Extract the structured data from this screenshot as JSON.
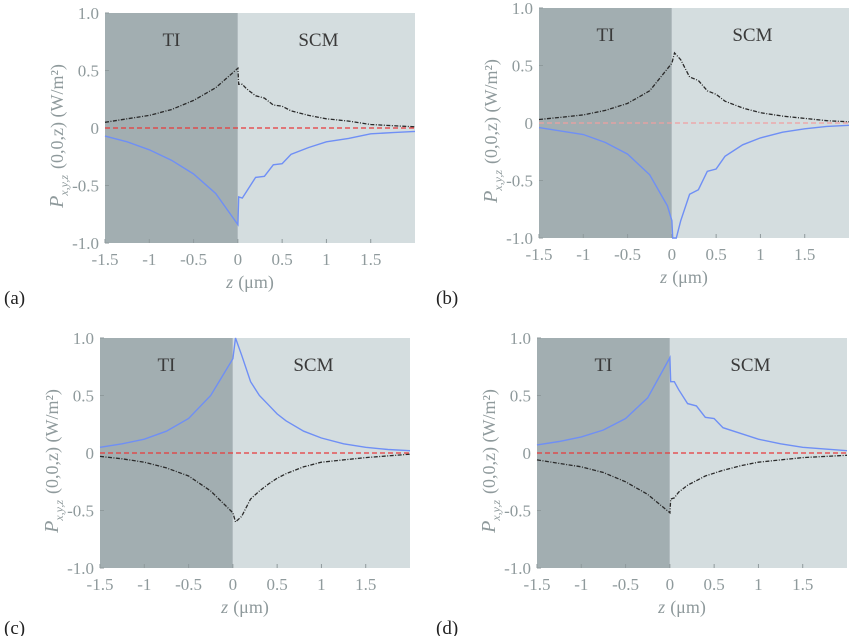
{
  "chart_data": [
    {
      "panel_label": "(a)",
      "type": "line",
      "xlabel_var": "z",
      "xlabel_unit": "(μm)",
      "ylabel_var": "P",
      "ylabel_sub": "x,y,z",
      "ylabel_rest": "(0,0,z) (W/m²)",
      "xlim": [
        -1.5,
        2.0
      ],
      "ylim": [
        -1.0,
        1.0
      ],
      "xticks": [
        "-1.5",
        "-1",
        "-0.5",
        "0",
        "0.5",
        "1",
        "1.5"
      ],
      "yticks": [
        "1.0",
        "0.5",
        "0",
        "-0.5",
        "-1.0"
      ],
      "regions": [
        {
          "label": "TI",
          "from": -1.5,
          "to": 0,
          "color": "#a2aeb1"
        },
        {
          "label": "SCM",
          "from": 0,
          "to": 2.0,
          "color": "#d4dddf"
        }
      ],
      "series": [
        {
          "style": "dashdot",
          "color": "#2a2a2a",
          "x": [
            -1.5,
            -1.25,
            -1,
            -0.75,
            -0.5,
            -0.25,
            0,
            0.01,
            0.05,
            0.1,
            0.2,
            0.3,
            0.4,
            0.5,
            0.6,
            0.8,
            1.0,
            1.25,
            1.5,
            1.75,
            2.0
          ],
          "y": [
            0.05,
            0.08,
            0.11,
            0.16,
            0.24,
            0.35,
            0.52,
            0.38,
            0.38,
            0.34,
            0.28,
            0.26,
            0.2,
            0.19,
            0.15,
            0.11,
            0.08,
            0.06,
            0.03,
            0.02,
            0.01
          ]
        },
        {
          "style": "solid",
          "color": "#6f8ff5",
          "x": [
            -1.5,
            -1.25,
            -1,
            -0.75,
            -0.5,
            -0.25,
            0,
            0.01,
            0.05,
            0.1,
            0.2,
            0.3,
            0.4,
            0.5,
            0.6,
            0.8,
            1.0,
            1.25,
            1.5,
            1.75,
            2.0
          ],
          "y": [
            -0.07,
            -0.12,
            -0.19,
            -0.28,
            -0.4,
            -0.57,
            -0.84,
            -0.6,
            -0.61,
            -0.55,
            -0.43,
            -0.42,
            -0.32,
            -0.31,
            -0.23,
            -0.17,
            -0.12,
            -0.09,
            -0.05,
            -0.04,
            -0.03
          ]
        },
        {
          "style": "dashed",
          "color": "#e83a3a",
          "x": [
            -1.5,
            2.0
          ],
          "y": [
            0,
            0
          ]
        }
      ]
    },
    {
      "panel_label": "(b)",
      "type": "line",
      "xlabel_var": "z",
      "xlabel_unit": "(μm)",
      "ylabel_var": "P",
      "ylabel_sub": "x,y,z",
      "ylabel_rest": "(0,0,z) (W/m²)",
      "xlim": [
        -1.5,
        2.0
      ],
      "ylim": [
        -1.0,
        1.0
      ],
      "xticks": [
        "-1.5",
        "-1",
        "-0.5",
        "0",
        "0.5",
        "1",
        "1.5"
      ],
      "yticks": [
        "1.0",
        "0.5",
        "0",
        "-0.5",
        "-1.0"
      ],
      "regions": [
        {
          "label": "TI",
          "from": -1.5,
          "to": 0,
          "color": "#a2aeb1"
        },
        {
          "label": "SCM",
          "from": 0,
          "to": 2.0,
          "color": "#d4dddf"
        }
      ],
      "series": [
        {
          "style": "dashdot",
          "color": "#2a2a2a",
          "x": [
            -1.5,
            -1.25,
            -1,
            -0.75,
            -0.5,
            -0.25,
            0,
            0.03,
            0.1,
            0.2,
            0.3,
            0.4,
            0.5,
            0.6,
            0.8,
            1.0,
            1.25,
            1.5,
            1.75,
            2.0
          ],
          "y": [
            0.03,
            0.05,
            0.07,
            0.11,
            0.17,
            0.28,
            0.52,
            0.61,
            0.55,
            0.4,
            0.37,
            0.28,
            0.25,
            0.19,
            0.13,
            0.09,
            0.06,
            0.04,
            0.02,
            0.01
          ]
        },
        {
          "style": "solid",
          "color": "#6f8ff5",
          "x": [
            -1.5,
            -1.25,
            -1,
            -0.75,
            -0.5,
            -0.25,
            -0.05,
            0,
            0.01,
            0.05,
            0.1,
            0.2,
            0.3,
            0.4,
            0.5,
            0.6,
            0.8,
            1.0,
            1.25,
            1.5,
            1.75,
            2.0
          ],
          "y": [
            -0.04,
            -0.07,
            -0.1,
            -0.17,
            -0.27,
            -0.45,
            -0.72,
            -0.85,
            -1.0,
            -1.0,
            -0.85,
            -0.62,
            -0.58,
            -0.42,
            -0.4,
            -0.29,
            -0.19,
            -0.13,
            -0.08,
            -0.05,
            -0.03,
            -0.02
          ]
        },
        {
          "style": "dashed",
          "color": "#f0a0a0",
          "x": [
            -1.5,
            2.0
          ],
          "y": [
            0,
            0
          ]
        }
      ]
    },
    {
      "panel_label": "(c)",
      "type": "line",
      "xlabel_var": "z",
      "xlabel_unit": "(μm)",
      "ylabel_var": "P",
      "ylabel_sub": "x,y,z",
      "ylabel_rest": "(0,0,z) (W/m²)",
      "xlim": [
        -1.5,
        2.0
      ],
      "ylim": [
        -1.0,
        1.0
      ],
      "xticks": [
        "-1.5",
        "-1",
        "-0.5",
        "0",
        "0.5",
        "1",
        "1.5"
      ],
      "yticks": [
        "1.0",
        "0.5",
        "0",
        "-0.5",
        "-1.0"
      ],
      "regions": [
        {
          "label": "TI",
          "from": -1.5,
          "to": 0,
          "color": "#a2aeb1"
        },
        {
          "label": "SCM",
          "from": 0,
          "to": 2.0,
          "color": "#d4dddf"
        }
      ],
      "series": [
        {
          "style": "solid",
          "color": "#6f8ff5",
          "x": [
            -1.5,
            -1.25,
            -1,
            -0.75,
            -0.5,
            -0.25,
            0,
            0.03,
            0.1,
            0.2,
            0.3,
            0.4,
            0.5,
            0.6,
            0.8,
            1.0,
            1.25,
            1.5,
            1.75,
            2.0
          ],
          "y": [
            0.05,
            0.08,
            0.12,
            0.19,
            0.3,
            0.5,
            0.82,
            1.0,
            0.85,
            0.62,
            0.5,
            0.42,
            0.34,
            0.28,
            0.19,
            0.13,
            0.08,
            0.05,
            0.03,
            0.02
          ]
        },
        {
          "style": "dashdot",
          "color": "#2a2a2a",
          "x": [
            -1.5,
            -1.25,
            -1,
            -0.75,
            -0.5,
            -0.25,
            0,
            0.03,
            0.1,
            0.2,
            0.3,
            0.4,
            0.5,
            0.6,
            0.8,
            1.0,
            1.5,
            2.0
          ],
          "y": [
            -0.03,
            -0.05,
            -0.08,
            -0.13,
            -0.2,
            -0.33,
            -0.52,
            -0.6,
            -0.55,
            -0.4,
            -0.33,
            -0.27,
            -0.22,
            -0.18,
            -0.12,
            -0.08,
            -0.04,
            -0.01
          ]
        },
        {
          "style": "dashed",
          "color": "#e83a3a",
          "x": [
            -1.5,
            2.0
          ],
          "y": [
            0,
            0
          ]
        }
      ]
    },
    {
      "panel_label": "(d)",
      "type": "line",
      "xlabel_var": "z",
      "xlabel_unit": "(μm)",
      "ylabel_var": "P",
      "ylabel_sub": "x,y,z",
      "ylabel_rest": "(0,0,z) (W/m²)",
      "xlim": [
        -1.5,
        2.0
      ],
      "ylim": [
        -1.0,
        1.0
      ],
      "xticks": [
        "-1.5",
        "-1",
        "-0.5",
        "0",
        "0.5",
        "1",
        "1.5"
      ],
      "yticks": [
        "1.0",
        "0.5",
        "0",
        "-0.5",
        "-1.0"
      ],
      "regions": [
        {
          "label": "TI",
          "from": -1.5,
          "to": 0,
          "color": "#a2aeb1"
        },
        {
          "label": "SCM",
          "from": 0,
          "to": 2.0,
          "color": "#d4dddf"
        }
      ],
      "series": [
        {
          "style": "solid",
          "color": "#6f8ff5",
          "x": [
            -1.5,
            -1.25,
            -1,
            -0.75,
            -0.5,
            -0.25,
            0,
            0.01,
            0.05,
            0.1,
            0.2,
            0.3,
            0.4,
            0.5,
            0.6,
            0.8,
            1.0,
            1.25,
            1.5,
            2.0
          ],
          "y": [
            0.07,
            0.1,
            0.14,
            0.2,
            0.3,
            0.48,
            0.83,
            0.62,
            0.62,
            0.55,
            0.43,
            0.41,
            0.31,
            0.3,
            0.22,
            0.17,
            0.12,
            0.08,
            0.05,
            0.02
          ]
        },
        {
          "style": "dashdot",
          "color": "#2a2a2a",
          "x": [
            -1.5,
            -1.25,
            -1,
            -0.75,
            -0.5,
            -0.25,
            0,
            0.01,
            0.05,
            0.1,
            0.2,
            0.4,
            0.6,
            0.8,
            1.0,
            1.5,
            2.0
          ],
          "y": [
            -0.06,
            -0.09,
            -0.12,
            -0.17,
            -0.25,
            -0.36,
            -0.52,
            -0.4,
            -0.39,
            -0.34,
            -0.28,
            -0.2,
            -0.15,
            -0.11,
            -0.08,
            -0.04,
            -0.02
          ]
        },
        {
          "style": "dashed",
          "color": "#e83a3a",
          "x": [
            -1.5,
            2.0
          ],
          "y": [
            0,
            0
          ]
        }
      ]
    }
  ]
}
